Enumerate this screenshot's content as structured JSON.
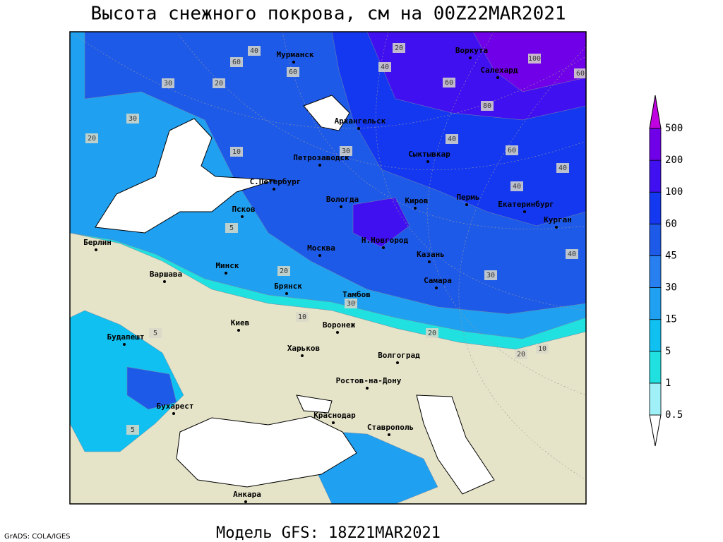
{
  "title": "Высота снежного покрова, см на 00Z22MAR2021",
  "footer": "Модель GFS: 18Z21MAR2021",
  "credit": "GrADS: COLA/IGES",
  "cities": [
    "Мурманск",
    "Воркута",
    "Салехард",
    "Архангельск",
    "Петрозаводск",
    "Сыктывкар",
    "С.Петербург",
    "Вологда",
    "Киров",
    "Пермь",
    "Екатеринбург",
    "Курган",
    "Псков",
    "Берлин",
    "Москва",
    "Н.Новгород",
    "Казань",
    "Варшава",
    "Минск",
    "Брянск",
    "Тамбов",
    "Самара",
    "Воронеж",
    "Киев",
    "Харьков",
    "Будапешт",
    "Волгоград",
    "Ростов-на-Дону",
    "Бухарест",
    "Краснодар",
    "Ставрополь",
    "Анкара"
  ],
  "contour_labels": [
    40,
    60,
    20,
    60,
    40,
    100,
    60,
    30,
    20,
    60,
    80,
    30,
    20,
    10,
    40,
    30,
    40,
    60,
    40,
    5,
    30,
    40,
    20,
    30,
    20,
    10,
    10,
    5,
    5,
    20
  ],
  "colorbar": {
    "levels": [
      0.5,
      1,
      5,
      15,
      30,
      45,
      60,
      100,
      200,
      500
    ],
    "colors": [
      "#ffffff",
      "#a0f0f8",
      "#20e0e0",
      "#10c0f0",
      "#20a0f0",
      "#2880f0",
      "#1e5ae8",
      "#1438f0",
      "#4010f0",
      "#7000e8",
      "#c000e0"
    ]
  }
}
